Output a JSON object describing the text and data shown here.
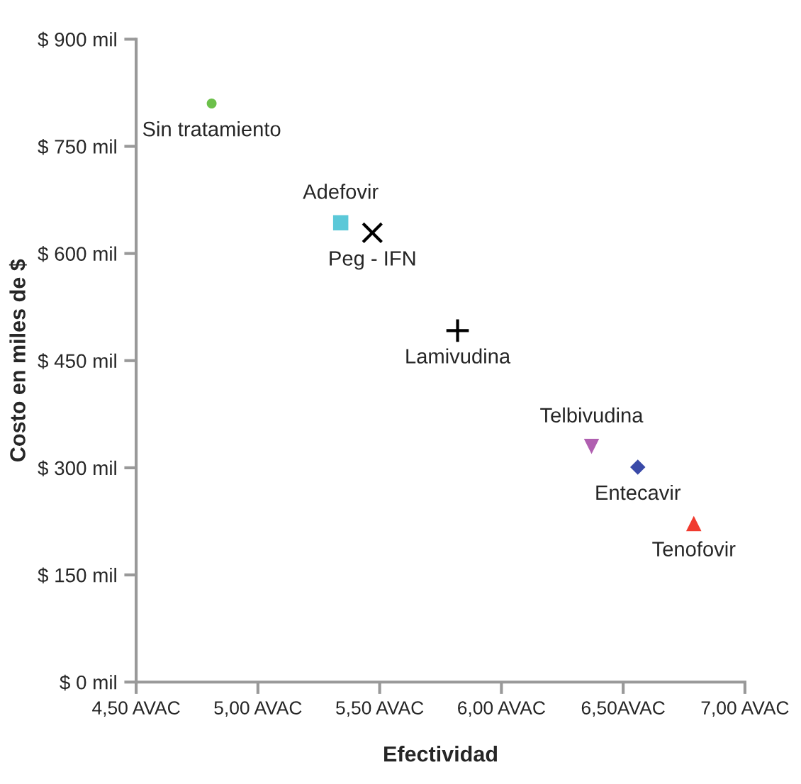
{
  "chart_data": {
    "type": "scatter",
    "xlabel": "Efectividad",
    "ylabel": "Costo en miles de $",
    "xlim": [
      4.5,
      7.0
    ],
    "ylim": [
      0,
      900
    ],
    "xticks": [
      {
        "value": 4.5,
        "label": "4,50 AVAC"
      },
      {
        "value": 5.0,
        "label": "5,00 AVAC"
      },
      {
        "value": 5.5,
        "label": "5,50 AVAC"
      },
      {
        "value": 6.0,
        "label": "6,00 AVAC"
      },
      {
        "value": 6.5,
        "label": "6,50AVAC"
      },
      {
        "value": 7.0,
        "label": "7,00 AVAC"
      }
    ],
    "yticks": [
      {
        "value": 0,
        "label": "$ 0 mil"
      },
      {
        "value": 150,
        "label": "$ 150 mil"
      },
      {
        "value": 300,
        "label": "$ 300 mil"
      },
      {
        "value": 450,
        "label": "$ 450 mil"
      },
      {
        "value": 600,
        "label": "$ 600 mil"
      },
      {
        "value": 750,
        "label": "$ 750 mil"
      },
      {
        "value": 900,
        "label": "$ 900 mil"
      }
    ],
    "grid": false,
    "legend": false,
    "series": [
      {
        "name": "Sin tratamiento",
        "color": "#6cc04a",
        "marker": "circle",
        "x": [
          4.81
        ],
        "values": [
          810
        ]
      },
      {
        "name": "Adefovir",
        "color": "#5bc8d8",
        "marker": "square",
        "x": [
          5.34
        ],
        "values": [
          643
        ]
      },
      {
        "name": "Peg - IFN",
        "color": "#000000",
        "marker": "cross",
        "x": [
          5.47
        ],
        "values": [
          629
        ]
      },
      {
        "name": "Lamivudina",
        "color": "#000000",
        "marker": "plus",
        "x": [
          5.82
        ],
        "values": [
          492
        ]
      },
      {
        "name": "Telbivudina",
        "color": "#b05fb0",
        "marker": "triangle_down",
        "x": [
          6.37
        ],
        "values": [
          330
        ]
      },
      {
        "name": "Entecavir",
        "color": "#3a4aa8",
        "marker": "diamond",
        "x": [
          6.56
        ],
        "values": [
          301
        ]
      },
      {
        "name": "Tenofovir",
        "color": "#f03a2e",
        "marker": "triangle",
        "x": [
          6.79
        ],
        "values": [
          222
        ]
      }
    ]
  }
}
